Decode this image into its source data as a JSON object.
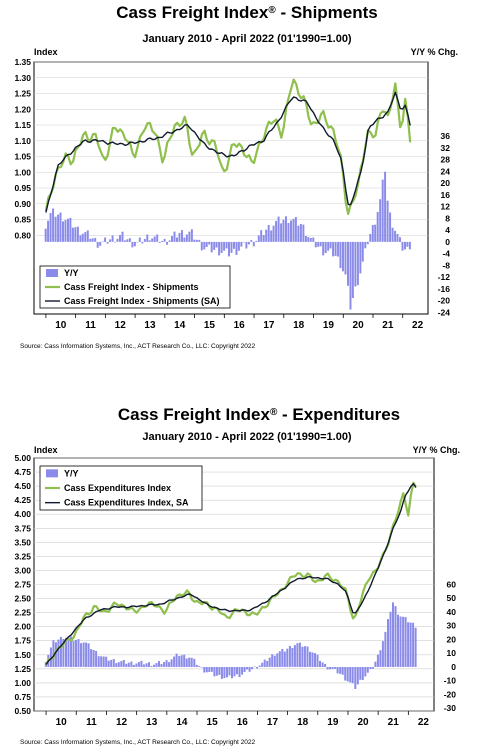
{
  "chart_data": [
    {
      "type": "line",
      "title": "Cass Freight Index",
      "title_suffix": " - Shipments",
      "title_mark": "®",
      "subtitle": "January 2010 - April 2022 (01'1990=1.00)",
      "left_axis_label": "Index",
      "right_axis_label": "Y/Y % Chg.",
      "left_ticks": [
        "1.35",
        "1.30",
        "1.25",
        "1.20",
        "1.15",
        "1.10",
        "1.05",
        "1.00",
        "0.95",
        "0.90",
        "0.85",
        "0.80"
      ],
      "left_range": [
        0.55,
        1.35
      ],
      "right_ticks": [
        "36",
        "32",
        "28",
        "24",
        "20",
        "16",
        "12",
        "8",
        "4",
        "0",
        "-4",
        "-8",
        "-12",
        "-16",
        "-20",
        "-24"
      ],
      "right_range": [
        -24,
        36
      ],
      "x_ticks": [
        "10",
        "11",
        "12",
        "13",
        "14",
        "15",
        "16",
        "17",
        "18",
        "19",
        "20",
        "21",
        "22"
      ],
      "legend": [
        "Y/Y",
        "Cass Freight Index - Shipments",
        "Cass Freight Index - Shipments (SA)"
      ],
      "colors": {
        "yy": "#8b8bea",
        "nsa": "#8fbf4d",
        "sa": "#111a2e"
      },
      "source": "Source: Cass Information Systems, Inc., ACT Research Co., LLC: Copyright 2022",
      "anchors": {
        "index_nsa": [
          [
            2010.0,
            0.87
          ],
          [
            2010.3,
            0.99
          ],
          [
            2010.7,
            1.05
          ],
          [
            2010.9,
            1.04
          ],
          [
            2011.3,
            1.12
          ],
          [
            2011.7,
            1.11
          ],
          [
            2011.95,
            1.03
          ],
          [
            2012.3,
            1.14
          ],
          [
            2012.7,
            1.12
          ],
          [
            2012.95,
            1.04
          ],
          [
            2013.3,
            1.15
          ],
          [
            2013.7,
            1.13
          ],
          [
            2013.95,
            1.03
          ],
          [
            2014.3,
            1.15
          ],
          [
            2014.7,
            1.16
          ],
          [
            2014.95,
            1.05
          ],
          [
            2015.3,
            1.12
          ],
          [
            2015.7,
            1.09
          ],
          [
            2015.95,
            0.99
          ],
          [
            2016.3,
            1.09
          ],
          [
            2016.7,
            1.07
          ],
          [
            2016.95,
            1.02
          ],
          [
            2017.3,
            1.12
          ],
          [
            2017.7,
            1.17
          ],
          [
            2017.95,
            1.12
          ],
          [
            2018.3,
            1.3
          ],
          [
            2018.7,
            1.22
          ],
          [
            2018.95,
            1.15
          ],
          [
            2019.3,
            1.18
          ],
          [
            2019.7,
            1.13
          ],
          [
            2019.95,
            1.02
          ],
          [
            2020.15,
            0.87
          ],
          [
            2020.5,
            0.95
          ],
          [
            2020.8,
            1.13
          ],
          [
            2021.1,
            1.11
          ],
          [
            2021.3,
            1.22
          ],
          [
            2021.5,
            1.17
          ],
          [
            2021.75,
            1.27
          ],
          [
            2021.95,
            1.14
          ],
          [
            2022.1,
            1.23
          ],
          [
            2022.25,
            1.1
          ]
        ],
        "index_sa": [
          [
            2010.0,
            0.87
          ],
          [
            2010.4,
            1.02
          ],
          [
            2010.8,
            1.06
          ],
          [
            2011.3,
            1.1
          ],
          [
            2011.8,
            1.1
          ],
          [
            2012.3,
            1.09
          ],
          [
            2012.8,
            1.09
          ],
          [
            2013.3,
            1.1
          ],
          [
            2013.8,
            1.11
          ],
          [
            2014.3,
            1.13
          ],
          [
            2014.8,
            1.15
          ],
          [
            2015.3,
            1.09
          ],
          [
            2015.8,
            1.06
          ],
          [
            2016.3,
            1.05
          ],
          [
            2016.8,
            1.08
          ],
          [
            2017.3,
            1.1
          ],
          [
            2017.8,
            1.16
          ],
          [
            2018.3,
            1.24
          ],
          [
            2018.8,
            1.22
          ],
          [
            2019.3,
            1.14
          ],
          [
            2019.7,
            1.1
          ],
          [
            2019.95,
            1.03
          ],
          [
            2020.2,
            0.88
          ],
          [
            2020.6,
            1.0
          ],
          [
            2020.85,
            1.14
          ],
          [
            2021.2,
            1.17
          ],
          [
            2021.5,
            1.19
          ],
          [
            2021.75,
            1.25
          ],
          [
            2021.95,
            1.2
          ],
          [
            2022.1,
            1.21
          ],
          [
            2022.25,
            1.15
          ]
        ],
        "yy": [
          [
            2010.0,
            6
          ],
          [
            2010.2,
            10
          ],
          [
            2010.5,
            9
          ],
          [
            2010.8,
            7
          ],
          [
            2011.1,
            4
          ],
          [
            2011.5,
            2
          ],
          [
            2011.8,
            -1
          ],
          [
            2012.2,
            1
          ],
          [
            2012.6,
            2
          ],
          [
            2013.0,
            -1
          ],
          [
            2013.5,
            2
          ],
          [
            2014.0,
            0
          ],
          [
            2014.5,
            3
          ],
          [
            2014.9,
            3
          ],
          [
            2015.3,
            -2
          ],
          [
            2015.8,
            -3
          ],
          [
            2016.2,
            -4
          ],
          [
            2016.6,
            -2
          ],
          [
            2017.0,
            0
          ],
          [
            2017.4,
            4
          ],
          [
            2017.8,
            7
          ],
          [
            2018.2,
            8
          ],
          [
            2018.6,
            6
          ],
          [
            2018.9,
            1
          ],
          [
            2019.3,
            -3
          ],
          [
            2019.7,
            -4
          ],
          [
            2019.9,
            -7
          ],
          [
            2020.1,
            -12
          ],
          [
            2020.25,
            -22
          ],
          [
            2020.45,
            -15
          ],
          [
            2020.7,
            -6
          ],
          [
            2020.85,
            1
          ],
          [
            2021.05,
            6
          ],
          [
            2021.2,
            12
          ],
          [
            2021.3,
            16
          ],
          [
            2021.4,
            27
          ],
          [
            2021.5,
            14
          ],
          [
            2021.6,
            8
          ],
          [
            2021.8,
            3
          ],
          [
            2022.0,
            -2
          ],
          [
            2022.15,
            -3
          ],
          [
            2022.25,
            -1
          ]
        ]
      }
    },
    {
      "type": "line",
      "title": "Cass Freight Index",
      "title_suffix": " - Expenditures",
      "title_mark": "®",
      "subtitle": "January 2010 - April 2022 (01'1990=1.00)",
      "left_axis_label": "Index",
      "right_axis_label": "Y/Y % Chg.",
      "left_ticks": [
        "5.00",
        "4.75",
        "4.50",
        "4.25",
        "4.00",
        "3.75",
        "3.50",
        "3.25",
        "3.00",
        "2.75",
        "2.50",
        "2.25",
        "2.00",
        "1.75",
        "1.50",
        "1.25",
        "1.00",
        "0.75",
        "0.50"
      ],
      "left_range": [
        0.5,
        5.0
      ],
      "right_ticks": [
        "60",
        "50",
        "40",
        "30",
        "20",
        "10",
        "0",
        "-10",
        "-20",
        "-30"
      ],
      "right_range": [
        -30,
        60
      ],
      "x_ticks": [
        "10",
        "11",
        "12",
        "13",
        "14",
        "15",
        "16",
        "17",
        "18",
        "19",
        "20",
        "21",
        "22"
      ],
      "legend": [
        "Y/Y",
        "Cass Expenditures Index",
        "Cass Expenditures Index, SA"
      ],
      "colors": {
        "yy": "#8b8bea",
        "nsa": "#8fbf4d",
        "sa": "#111a2e"
      },
      "source": "Source: Cass Information Systems, Inc., ACT Research Co., LLC: Copyright 2022",
      "anchors": {
        "index_nsa": [
          [
            2010.0,
            1.3
          ],
          [
            2010.3,
            1.55
          ],
          [
            2010.7,
            1.75
          ],
          [
            2010.95,
            1.85
          ],
          [
            2011.3,
            2.2
          ],
          [
            2011.6,
            2.35
          ],
          [
            2011.9,
            2.25
          ],
          [
            2012.3,
            2.4
          ],
          [
            2012.7,
            2.35
          ],
          [
            2012.95,
            2.25
          ],
          [
            2013.3,
            2.4
          ],
          [
            2013.7,
            2.38
          ],
          [
            2013.95,
            2.25
          ],
          [
            2014.3,
            2.55
          ],
          [
            2014.7,
            2.6
          ],
          [
            2014.95,
            2.45
          ],
          [
            2015.3,
            2.4
          ],
          [
            2015.7,
            2.3
          ],
          [
            2015.95,
            2.15
          ],
          [
            2016.3,
            2.3
          ],
          [
            2016.7,
            2.25
          ],
          [
            2016.95,
            2.2
          ],
          [
            2017.3,
            2.4
          ],
          [
            2017.7,
            2.6
          ],
          [
            2017.95,
            2.75
          ],
          [
            2018.3,
            2.95
          ],
          [
            2018.7,
            2.9
          ],
          [
            2018.95,
            2.8
          ],
          [
            2019.3,
            2.9
          ],
          [
            2019.7,
            2.8
          ],
          [
            2019.95,
            2.6
          ],
          [
            2020.2,
            2.1
          ],
          [
            2020.45,
            2.5
          ],
          [
            2020.7,
            2.9
          ],
          [
            2020.95,
            3.0
          ],
          [
            2021.2,
            3.3
          ],
          [
            2021.45,
            3.7
          ],
          [
            2021.7,
            4.1
          ],
          [
            2021.85,
            4.4
          ],
          [
            2022.0,
            4.0
          ],
          [
            2022.15,
            4.55
          ],
          [
            2022.25,
            4.5
          ]
        ],
        "index_sa": [
          [
            2010.0,
            1.32
          ],
          [
            2010.4,
            1.6
          ],
          [
            2010.8,
            1.85
          ],
          [
            2011.3,
            2.15
          ],
          [
            2011.8,
            2.3
          ],
          [
            2012.3,
            2.35
          ],
          [
            2012.8,
            2.35
          ],
          [
            2013.3,
            2.38
          ],
          [
            2013.8,
            2.4
          ],
          [
            2014.3,
            2.5
          ],
          [
            2014.8,
            2.58
          ],
          [
            2015.3,
            2.4
          ],
          [
            2015.8,
            2.3
          ],
          [
            2016.3,
            2.28
          ],
          [
            2016.8,
            2.3
          ],
          [
            2017.3,
            2.45
          ],
          [
            2017.8,
            2.65
          ],
          [
            2018.3,
            2.85
          ],
          [
            2018.8,
            2.88
          ],
          [
            2019.3,
            2.85
          ],
          [
            2019.7,
            2.75
          ],
          [
            2019.95,
            2.6
          ],
          [
            2020.2,
            2.2
          ],
          [
            2020.5,
            2.45
          ],
          [
            2020.8,
            2.8
          ],
          [
            2021.2,
            3.3
          ],
          [
            2021.5,
            3.75
          ],
          [
            2021.75,
            4.05
          ],
          [
            2021.9,
            4.35
          ],
          [
            2022.05,
            4.45
          ],
          [
            2022.15,
            4.55
          ],
          [
            2022.25,
            4.48
          ]
        ],
        "yy": [
          [
            2010.0,
            5
          ],
          [
            2010.25,
            18
          ],
          [
            2010.6,
            22
          ],
          [
            2010.95,
            20
          ],
          [
            2011.3,
            18
          ],
          [
            2011.7,
            10
          ],
          [
            2012.0,
            6
          ],
          [
            2012.4,
            4
          ],
          [
            2012.8,
            3
          ],
          [
            2013.2,
            3
          ],
          [
            2013.6,
            2
          ],
          [
            2014.0,
            4
          ],
          [
            2014.4,
            9
          ],
          [
            2014.8,
            7
          ],
          [
            2015.2,
            -2
          ],
          [
            2015.6,
            -6
          ],
          [
            2016.0,
            -8
          ],
          [
            2016.4,
            -6
          ],
          [
            2016.8,
            -2
          ],
          [
            2017.2,
            3
          ],
          [
            2017.6,
            10
          ],
          [
            2017.9,
            12
          ],
          [
            2018.3,
            17
          ],
          [
            2018.6,
            15
          ],
          [
            2018.9,
            10
          ],
          [
            2019.3,
            0
          ],
          [
            2019.7,
            -4
          ],
          [
            2020.0,
            -10
          ],
          [
            2020.25,
            -15
          ],
          [
            2020.5,
            -8
          ],
          [
            2020.8,
            -2
          ],
          [
            2021.0,
            8
          ],
          [
            2021.25,
            25
          ],
          [
            2021.4,
            40
          ],
          [
            2021.5,
            47
          ],
          [
            2021.7,
            38
          ],
          [
            2021.9,
            35
          ],
          [
            2022.1,
            32
          ],
          [
            2022.25,
            30
          ]
        ]
      }
    }
  ]
}
